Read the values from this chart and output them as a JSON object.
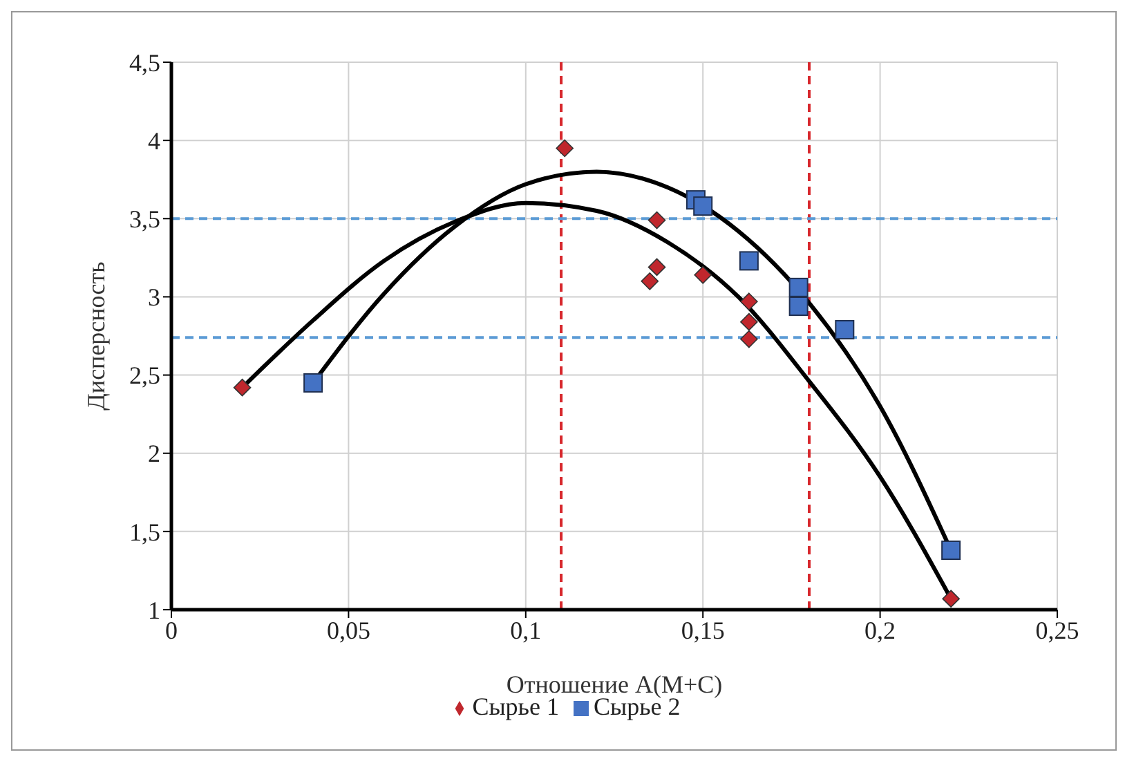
{
  "chart_data": {
    "type": "scatter",
    "xlabel": "Отношение А(М+С)",
    "ylabel": "Дисперсность",
    "xlim": [
      0,
      0.25
    ],
    "xticks": [
      {
        "value": 0,
        "label": "0"
      },
      {
        "value": 0.05,
        "label": "0,05"
      },
      {
        "value": 0.1,
        "label": "0,1"
      },
      {
        "value": 0.15,
        "label": "0,15"
      },
      {
        "value": 0.2,
        "label": "0,2"
      },
      {
        "value": 0.25,
        "label": "0,25"
      }
    ],
    "ylim": [
      1,
      4.5
    ],
    "yticks": [
      {
        "value": 1,
        "label": "1"
      },
      {
        "value": 1.5,
        "label": "1,5"
      },
      {
        "value": 2,
        "label": "2"
      },
      {
        "value": 2.5,
        "label": "2,5"
      },
      {
        "value": 3,
        "label": "3"
      },
      {
        "value": 3.5,
        "label": "3,5"
      },
      {
        "value": 4,
        "label": "4"
      },
      {
        "value": 4.5,
        "label": "4,5"
      }
    ],
    "grid": true,
    "legend": "bottom",
    "series": [
      {
        "name": "Сырье 1",
        "marker": "diamond",
        "color": "#c0272d",
        "x": [
          0.02,
          0.111,
          0.137,
          0.137,
          0.135,
          0.15,
          0.163,
          0.163,
          0.163,
          0.22
        ],
        "values": [
          2.42,
          3.95,
          3.49,
          3.19,
          3.1,
          3.14,
          2.97,
          2.84,
          2.73,
          1.07
        ]
      },
      {
        "name": "Сырье 2",
        "marker": "square",
        "color": "#4472c4",
        "x": [
          0.04,
          0.148,
          0.15,
          0.163,
          0.177,
          0.177,
          0.19,
          0.22
        ],
        "values": [
          2.45,
          3.62,
          3.58,
          3.23,
          3.06,
          2.94,
          2.79,
          1.38
        ]
      },
      {
        "type": "line",
        "marker": "none",
        "color": "#000000",
        "x": [
          0.02,
          0.04,
          0.06,
          0.08,
          0.1,
          0.12,
          0.14,
          0.16,
          0.18,
          0.2,
          0.22
        ],
        "values": [
          2.42,
          2.85,
          3.23,
          3.48,
          3.6,
          3.55,
          3.35,
          3.0,
          2.46,
          1.85,
          1.07
        ]
      },
      {
        "type": "line",
        "marker": "none",
        "color": "#000000",
        "x": [
          0.04,
          0.06,
          0.08,
          0.1,
          0.12,
          0.14,
          0.16,
          0.18,
          0.2,
          0.22
        ],
        "values": [
          2.45,
          3.02,
          3.45,
          3.72,
          3.8,
          3.7,
          3.42,
          2.96,
          2.3,
          1.38
        ]
      }
    ],
    "ref_lines": [
      {
        "axis": "x",
        "value": 0.11,
        "color": "#d7262b",
        "line_style": "dashed"
      },
      {
        "axis": "x",
        "value": 0.18,
        "color": "#d7262b",
        "line_style": "dashed"
      },
      {
        "axis": "y",
        "value": 3.5,
        "color": "#5b9bd5",
        "line_style": "dashed"
      },
      {
        "axis": "y",
        "value": 2.74,
        "color": "#5b9bd5",
        "line_style": "dashed"
      }
    ]
  }
}
